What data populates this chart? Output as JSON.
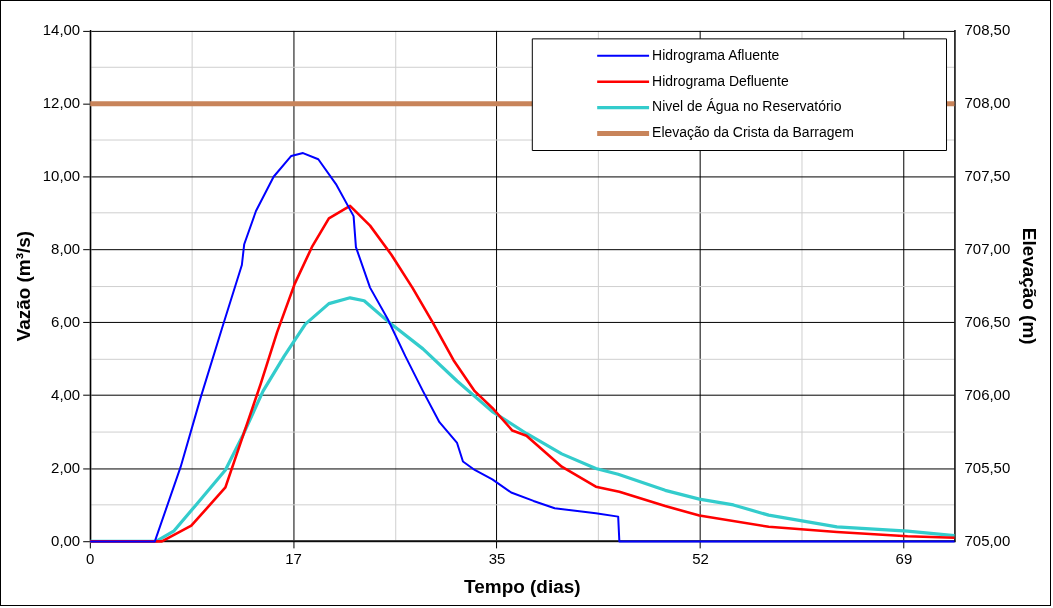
{
  "chart_data": {
    "type": "line",
    "xlabel": "Tempo (dias)",
    "ylabel": "Vazão (m³/s)",
    "y2label": "Elevação (m)",
    "xlim": [
      0,
      73.5
    ],
    "xticks": [
      0,
      {
        "value": 8.65,
        "label": null
      },
      {
        "value": 17.3,
        "label": "17"
      },
      {
        "value": 25.95,
        "label": null
      },
      {
        "value": 34.6,
        "label": "35"
      },
      {
        "value": 43.25,
        "label": null
      },
      {
        "value": 51.9,
        "label": "52"
      },
      {
        "value": 60.55,
        "label": null
      },
      {
        "value": 69.2,
        "label": "69"
      }
    ],
    "ylim": [
      0,
      14
    ],
    "yticks": [
      {
        "value": 0,
        "label": "0,00"
      },
      {
        "value": 1,
        "label": null
      },
      {
        "value": 2,
        "label": "2,00"
      },
      {
        "value": 3,
        "label": null
      },
      {
        "value": 4,
        "label": "4,00"
      },
      {
        "value": 5,
        "label": null
      },
      {
        "value": 6,
        "label": "6,00"
      },
      {
        "value": 7,
        "label": null
      },
      {
        "value": 8,
        "label": "8,00"
      },
      {
        "value": 9,
        "label": null
      },
      {
        "value": 10,
        "label": "10,00"
      },
      {
        "value": 11,
        "label": null
      },
      {
        "value": 12,
        "label": "12,00"
      },
      {
        "value": 13,
        "label": null
      },
      {
        "value": 14,
        "label": "14,00"
      }
    ],
    "y2lim": [
      705,
      708.5
    ],
    "y2ticks": [
      {
        "value": 705,
        "label": "705,00"
      },
      {
        "value": 705.5,
        "label": "705,50"
      },
      {
        "value": 706,
        "label": "706,00"
      },
      {
        "value": 706.5,
        "label": "706,50"
      },
      {
        "value": 707,
        "label": "707,00"
      },
      {
        "value": 707.5,
        "label": "707,50"
      },
      {
        "value": 708,
        "label": "708,00"
      },
      {
        "value": 708.5,
        "label": "708,50"
      }
    ],
    "grid": true,
    "legend": "top right",
    "marker": "none",
    "series": [
      {
        "name": "Hidrograma Afluente",
        "color": "#0000ff",
        "x": [
          0,
          5.5,
          7.7,
          9.4,
          11.2,
          12.9,
          13.1,
          14.1,
          15.6,
          17.1,
          18.1,
          19.4,
          20.9,
          22.4,
          22.6,
          23.8,
          25.3,
          26.8,
          28.3,
          29.7,
          31.2,
          31.7,
          32.7,
          34.2,
          35.8,
          37.7,
          39.5,
          43.0,
          44.9,
          45.0,
          73.5
        ],
        "values": [
          0,
          0,
          2.05,
          3.95,
          5.83,
          7.58,
          8.15,
          9.06,
          10.0,
          10.57,
          10.65,
          10.48,
          9.8,
          8.92,
          8.07,
          6.96,
          6.1,
          5.08,
          4.12,
          3.27,
          2.7,
          2.19,
          1.96,
          1.7,
          1.34,
          1.11,
          0.91,
          0.77,
          0.68,
          0,
          0
        ]
      },
      {
        "name": "Hidrograma Defluente",
        "color": "#ff0000",
        "x": [
          0,
          6.1,
          8.6,
          11.5,
          13.0,
          14.5,
          15.9,
          17.4,
          18.9,
          20.3,
          22.1,
          23.8,
          25.6,
          27.4,
          29.1,
          30.9,
          32.7,
          34.2,
          35.9,
          37.1,
          40.1,
          43.0,
          45.0,
          48.9,
          51.8,
          57.7,
          63.5,
          69.5,
          73.5
        ],
        "values": [
          0,
          0,
          0.43,
          1.48,
          2.9,
          4.32,
          5.74,
          7.07,
          8.1,
          8.86,
          9.2,
          8.66,
          7.87,
          6.96,
          6.02,
          4.97,
          4.12,
          3.66,
          3.04,
          2.9,
          2.05,
          1.5,
          1.36,
          0.97,
          0.71,
          0.4,
          0.26,
          0.14,
          0.1
        ]
      },
      {
        "name": "Nivel de Água no Reservatório",
        "color": "#33cccc",
        "axis": "y2",
        "x": [
          0,
          5.6,
          7.1,
          9.0,
          11.5,
          13.0,
          14.7,
          16.5,
          18.3,
          20.3,
          22.1,
          23.3,
          25.3,
          28.3,
          31.2,
          34.2,
          37.1,
          40.1,
          43.0,
          44.9,
          48.9,
          51.8,
          54.7,
          57.7,
          63.5,
          69.5,
          73.5
        ],
        "values": [
          705,
          705,
          705.07,
          705.25,
          705.49,
          705.73,
          706.03,
          706.27,
          706.49,
          706.63,
          706.67,
          706.65,
          706.51,
          706.32,
          706.1,
          705.89,
          705.74,
          705.6,
          705.5,
          705.46,
          705.35,
          705.29,
          705.25,
          705.18,
          705.1,
          705.07,
          705.04
        ]
      },
      {
        "name": "Elevação da Crista da Barragem",
        "color": "#c8845a",
        "axis": "y2",
        "x": [
          0,
          73.5
        ],
        "values": [
          708,
          708
        ]
      }
    ]
  }
}
